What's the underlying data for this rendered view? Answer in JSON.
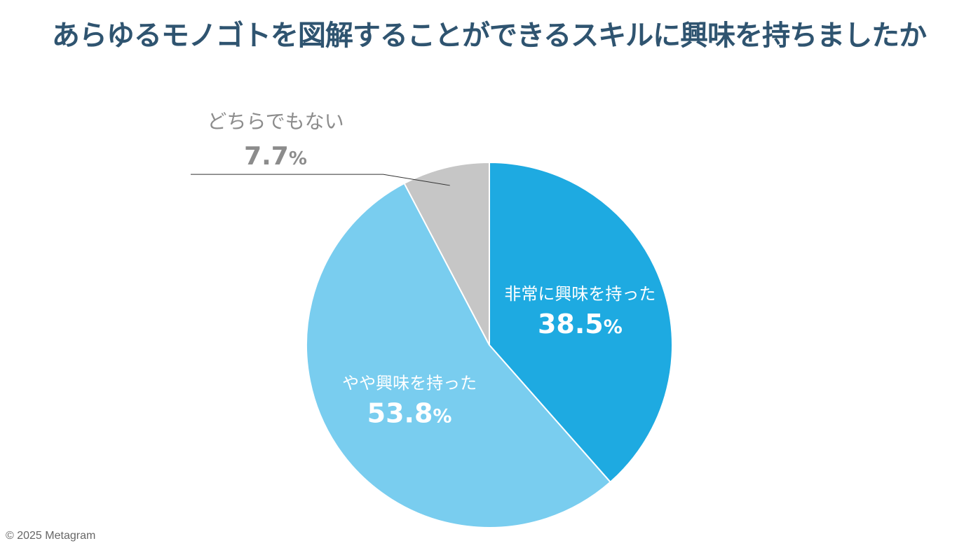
{
  "title": "あらゆるモノゴトを図解することができるスキルに興味を持ちましたか",
  "copyright": "© 2025 Metagram",
  "colors": {
    "title": "#2f5470",
    "outer_label": "#8c8c8c",
    "inner_label": "#ffffff",
    "leader_line": "#333333"
  },
  "chart_data": {
    "type": "pie",
    "start_angle_deg": 0,
    "direction": "clockwise",
    "slices": [
      {
        "label": "非常に興味を持った",
        "value": 38.5,
        "display": "38.5",
        "unit": "%",
        "color": "#1eaae1"
      },
      {
        "label": "やや興味を持った",
        "value": 53.8,
        "display": "53.8",
        "unit": "%",
        "color": "#79cdef"
      },
      {
        "label": "どちらでもない",
        "value": 7.7,
        "display": "7.7",
        "unit": "%",
        "color": "#c6c6c6"
      }
    ]
  }
}
